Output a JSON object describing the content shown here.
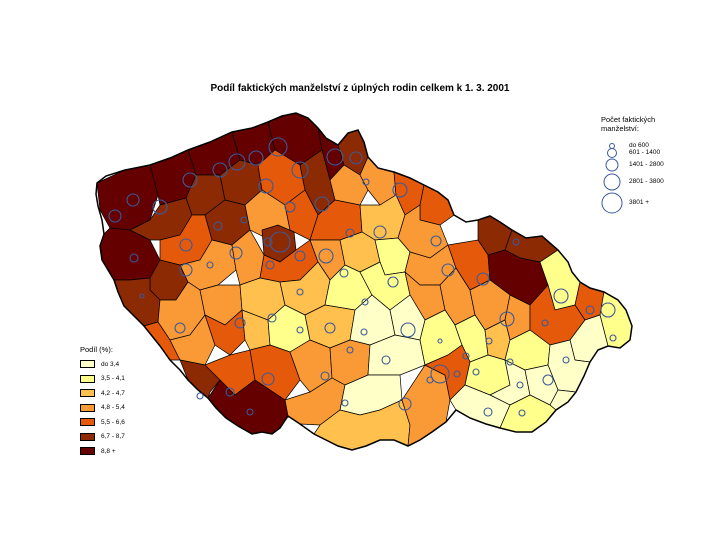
{
  "title": "Podíl faktických manželství z úplných rodin celkem k 1. 3. 2001",
  "share_legend": {
    "title": "Podíl (%):",
    "classes": [
      {
        "label": "do 3,4",
        "color": "#ffffc8"
      },
      {
        "label": "3,5 - 4,1",
        "color": "#ffff8c"
      },
      {
        "label": "4,2 - 4,7",
        "color": "#ffc04e"
      },
      {
        "label": "4,8 - 5,4",
        "color": "#fa9a36"
      },
      {
        "label": "5,5 - 6,6",
        "color": "#e45a0a"
      },
      {
        "label": "6,7 - 8,7",
        "color": "#8c2a04"
      },
      {
        "label": "8,8 +",
        "color": "#640000"
      }
    ]
  },
  "count_legend": {
    "title_line1": "Počet faktických",
    "title_line2": "manželství:",
    "classes": [
      "do 600",
      "601 - 1400",
      "1401 - 2800",
      "2801 - 3800",
      "3801 +"
    ]
  },
  "colors": {
    "circle_stroke": "#3b5a9a",
    "border": "#000000"
  }
}
